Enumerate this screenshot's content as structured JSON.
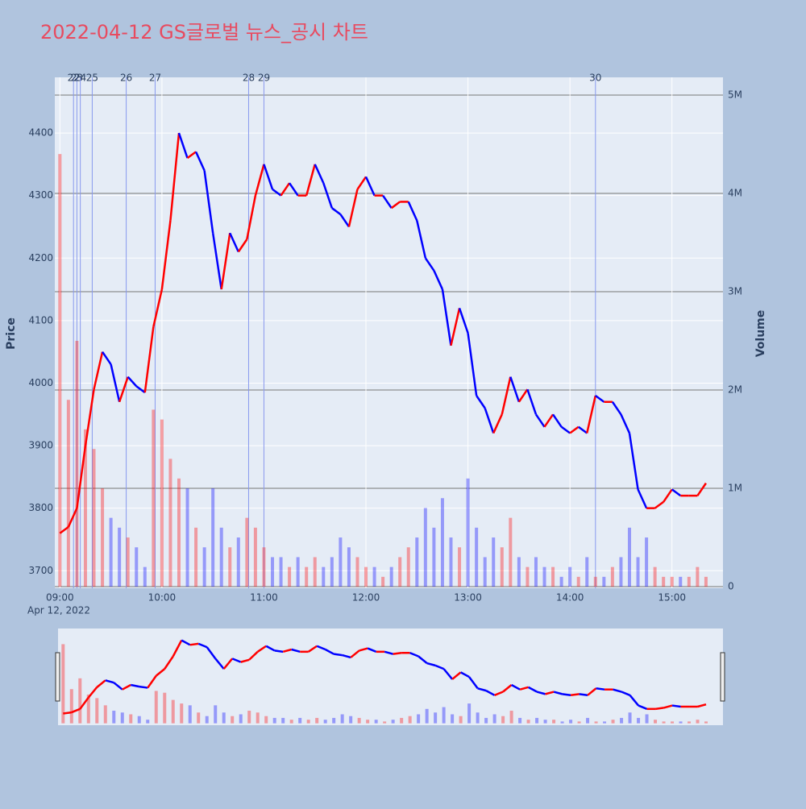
{
  "chart_data": {
    "type": "line",
    "title": "2022-04-12 GS글로벌 뉴스_공시 차트",
    "title_color": "#e84a5f",
    "ylabel": "Price",
    "y2label": "Volume",
    "x_date_label": "Apr 12, 2022",
    "x": [
      "09:00",
      "09:05",
      "09:10",
      "09:15",
      "09:20",
      "09:25",
      "09:30",
      "09:35",
      "09:40",
      "09:45",
      "09:50",
      "09:55",
      "10:00",
      "10:05",
      "10:10",
      "10:15",
      "10:20",
      "10:25",
      "10:30",
      "10:35",
      "10:40",
      "10:45",
      "10:50",
      "10:55",
      "11:00",
      "11:05",
      "11:10",
      "11:15",
      "11:20",
      "11:25",
      "11:30",
      "11:35",
      "11:40",
      "11:45",
      "11:50",
      "11:55",
      "12:00",
      "12:05",
      "12:10",
      "12:15",
      "12:20",
      "12:25",
      "12:30",
      "12:35",
      "12:40",
      "12:45",
      "12:50",
      "12:55",
      "13:00",
      "13:05",
      "13:10",
      "13:15",
      "13:20",
      "13:25",
      "13:30",
      "13:35",
      "13:40",
      "13:45",
      "13:50",
      "13:55",
      "14:00",
      "14:05",
      "14:10",
      "14:15",
      "14:20",
      "14:25",
      "14:30",
      "14:35",
      "14:40",
      "14:45",
      "14:50",
      "14:55",
      "15:00",
      "15:05",
      "15:10",
      "15:15",
      "15:20"
    ],
    "series": [
      {
        "name": "Price",
        "increasing_color": "#ff0000",
        "decreasing_color": "#0000ff",
        "values": [
          3760,
          3770,
          3800,
          3900,
          3990,
          4050,
          4030,
          3970,
          4010,
          3995,
          3985,
          4090,
          4150,
          4260,
          4400,
          4360,
          4370,
          4340,
          4240,
          4150,
          4240,
          4210,
          4230,
          4300,
          4350,
          4310,
          4300,
          4320,
          4300,
          4300,
          4350,
          4320,
          4280,
          4270,
          4250,
          4310,
          4330,
          4300,
          4300,
          4280,
          4290,
          4290,
          4260,
          4200,
          4180,
          4150,
          4060,
          4120,
          4080,
          3980,
          3960,
          3920,
          3950,
          4010,
          3970,
          3990,
          3950,
          3930,
          3950,
          3930,
          3920,
          3930,
          3920,
          3980,
          3970,
          3970,
          3950,
          3920,
          3830,
          3800,
          3800,
          3810,
          3830,
          3820,
          3820,
          3820,
          3840
        ]
      },
      {
        "name": "Volume",
        "axis": "y2",
        "opacity": 0.35,
        "values": [
          4400000,
          1900000,
          2500000,
          1600000,
          1400000,
          1000000,
          700000,
          600000,
          500000,
          400000,
          200000,
          1800000,
          1700000,
          1300000,
          1100000,
          1000000,
          600000,
          400000,
          1000000,
          600000,
          400000,
          500000,
          700000,
          600000,
          400000,
          300000,
          300000,
          200000,
          300000,
          200000,
          300000,
          200000,
          300000,
          500000,
          400000,
          300000,
          200000,
          200000,
          100000,
          200000,
          300000,
          400000,
          500000,
          800000,
          600000,
          900000,
          500000,
          400000,
          1100000,
          600000,
          300000,
          500000,
          400000,
          700000,
          300000,
          200000,
          300000,
          200000,
          200000,
          100000,
          200000,
          100000,
          300000,
          100000,
          100000,
          200000,
          300000,
          600000,
          300000,
          500000,
          200000,
          100000,
          100000,
          100000,
          100000,
          200000,
          100000
        ]
      }
    ],
    "xlim": [
      "08:57",
      "15:30"
    ],
    "xticks": [
      "09:00",
      "10:00",
      "11:00",
      "12:00",
      "13:00",
      "14:00",
      "15:00"
    ],
    "ylim": [
      3672,
      4489
    ],
    "yticks": [
      3700,
      3800,
      3900,
      4000,
      4100,
      4200,
      4300,
      4400
    ],
    "y2lim": [
      -16000,
      5180000
    ],
    "y2ticks": [
      {
        "value": 0,
        "label": "0"
      },
      {
        "value": 1000000,
        "label": "1M"
      },
      {
        "value": 2000000,
        "label": "2M"
      },
      {
        "value": 3000000,
        "label": "3M"
      },
      {
        "value": 4000000,
        "label": "4M"
      },
      {
        "value": 5000000,
        "label": "5M"
      }
    ],
    "grid": true,
    "events": [
      {
        "label": "22",
        "x": "09:08"
      },
      {
        "label": "23",
        "x": "09:10"
      },
      {
        "label": "24",
        "x": "09:12"
      },
      {
        "label": "25",
        "x": "09:19"
      },
      {
        "label": "26",
        "x": "09:39"
      },
      {
        "label": "27",
        "x": "09:56"
      },
      {
        "label": "28",
        "x": "10:51"
      },
      {
        "label": "29",
        "x": "11:00"
      },
      {
        "label": "30",
        "x": "14:15"
      }
    ],
    "event_color": "#8899ee",
    "range_slider": true
  }
}
